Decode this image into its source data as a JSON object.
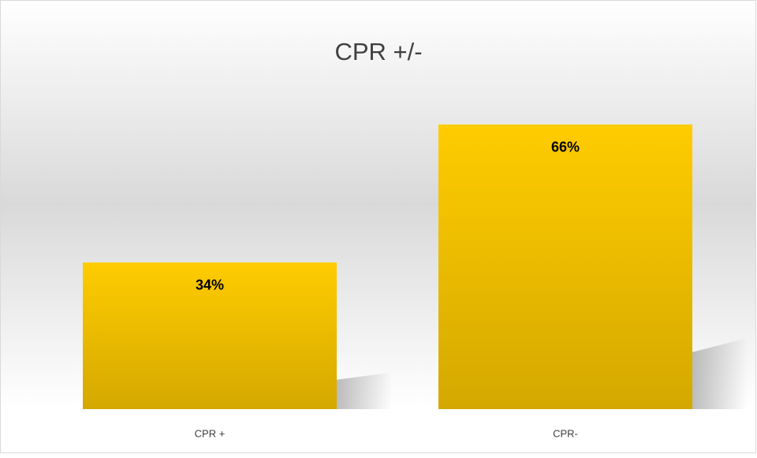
{
  "chart_data": {
    "type": "bar",
    "title": "CPR +/-",
    "categories": [
      "CPR +",
      "CPR-"
    ],
    "values": [
      34,
      66
    ],
    "value_labels": [
      "34%",
      "66%"
    ],
    "color": "#ffc800",
    "ylim": [
      0,
      70
    ]
  }
}
